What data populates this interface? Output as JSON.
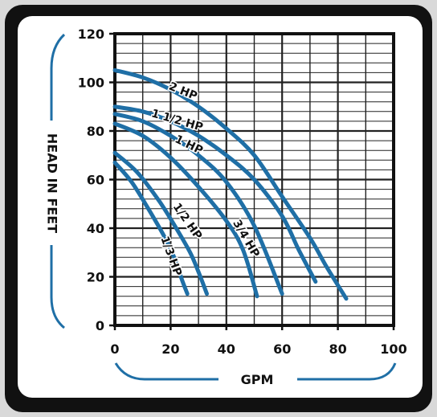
{
  "chart_data": {
    "type": "line",
    "xlabel": "GPM",
    "ylabel": "HEAD IN FEET",
    "xlim": [
      0,
      100
    ],
    "ylim": [
      0,
      120
    ],
    "x_ticks": [
      "0",
      "20",
      "40",
      "60",
      "80",
      "100"
    ],
    "y_ticks": [
      "0",
      "20",
      "40",
      "60",
      "80",
      "100",
      "120"
    ],
    "grid": true,
    "legend": "none",
    "colors": {
      "curve": "#1f6fa6",
      "panel": "#ffffff",
      "frame": "#111111",
      "background": "#d9d9d9",
      "grid": "#222222"
    },
    "series": [
      {
        "name": "1/3 HP",
        "points": [
          [
            0,
            67
          ],
          [
            6,
            59
          ],
          [
            12,
            48
          ],
          [
            18,
            36
          ],
          [
            22,
            26
          ],
          [
            24,
            19
          ],
          [
            26,
            13
          ]
        ]
      },
      {
        "name": "1/2 HP",
        "points": [
          [
            0,
            71
          ],
          [
            8,
            63
          ],
          [
            16,
            51
          ],
          [
            22,
            40
          ],
          [
            27,
            30
          ],
          [
            30,
            22
          ],
          [
            33,
            13
          ]
        ]
      },
      {
        "name": "3/4 HP",
        "points": [
          [
            0,
            83
          ],
          [
            10,
            78
          ],
          [
            20,
            69
          ],
          [
            30,
            57
          ],
          [
            40,
            43
          ],
          [
            46,
            31
          ],
          [
            51,
            12
          ]
        ]
      },
      {
        "name": "1 HP",
        "points": [
          [
            0,
            87
          ],
          [
            10,
            84
          ],
          [
            20,
            78
          ],
          [
            30,
            70
          ],
          [
            40,
            59
          ],
          [
            50,
            41
          ],
          [
            60,
            13
          ]
        ]
      },
      {
        "name": "1 1/2 HP",
        "points": [
          [
            0,
            90
          ],
          [
            10,
            88
          ],
          [
            20,
            84
          ],
          [
            30,
            78
          ],
          [
            40,
            70
          ],
          [
            50,
            60
          ],
          [
            60,
            45
          ],
          [
            66,
            31
          ],
          [
            72,
            18
          ]
        ]
      },
      {
        "name": "2 HP",
        "points": [
          [
            0,
            105
          ],
          [
            10,
            102
          ],
          [
            20,
            97
          ],
          [
            30,
            90
          ],
          [
            40,
            81
          ],
          [
            50,
            70
          ],
          [
            60,
            53
          ],
          [
            70,
            36
          ],
          [
            76,
            24
          ],
          [
            83,
            11
          ]
        ]
      }
    ]
  }
}
